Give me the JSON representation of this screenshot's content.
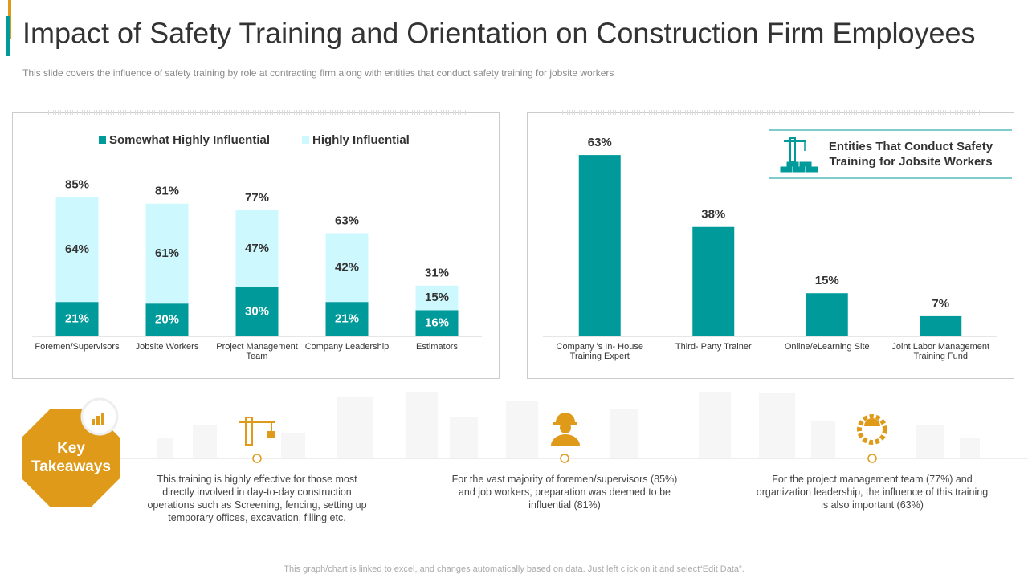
{
  "header": {
    "title": "Impact of Safety Training and Orientation on Construction Firm Employees",
    "subtitle": "This slide covers the influence of safety training by role at contracting firm along with entities that conduct safety training for jobsite workers"
  },
  "chart_data": [
    {
      "type": "stacked_bar",
      "categories": [
        "Foremen/Supervisors",
        "Jobsite Workers",
        "Project Management Team",
        "Company Leadership",
        "Estimators"
      ],
      "series": [
        {
          "name": "Somewhat Highly Influential",
          "color": "#009a9a",
          "values": [
            21,
            20,
            30,
            21,
            16
          ],
          "value_labels": [
            "21%",
            "20%",
            "30%",
            "21%",
            "16%"
          ]
        },
        {
          "name": "Highly Influential",
          "color": "#cdf8fd",
          "values": [
            64,
            61,
            47,
            42,
            15
          ],
          "value_labels": [
            "64%",
            "61%",
            "47%",
            "42%",
            "15%"
          ]
        }
      ],
      "totals": [
        85,
        81,
        77,
        63,
        31
      ],
      "total_labels": [
        "85%",
        "81%",
        "77%",
        "63%",
        "31%"
      ],
      "ylim": [
        0,
        100
      ],
      "legend": "top"
    },
    {
      "type": "bar",
      "title": "Entities That Conduct Safety Training for Jobsite Workers",
      "categories": [
        "Company 's In- House Training Expert",
        "Third- Party Trainer",
        "Online/eLearning Site",
        "Joint Labor Management Training Fund"
      ],
      "values": [
        63,
        38,
        15,
        7
      ],
      "value_labels": [
        "63%",
        "38%",
        "15%",
        "7%"
      ],
      "color": "#009a9a",
      "ylim": [
        0,
        70
      ]
    }
  ],
  "takeaways": {
    "heading": "Key Takeaways",
    "items": [
      "This training is highly effective for those most directly involved in day-to-day construction operations such as Screening, fencing, setting up temporary offices, excavation, filling etc.",
      "For the vast majority of foremen/supervisors (85%) and job workers, preparation was deemed to be influential (81%)",
      "For the project management team (77%) and organization leadership, the influence of this training is also important (63%)"
    ]
  },
  "footer": "This graph/chart is linked to excel, and changes automatically based on data. Just left click on it and select“Edit Data”."
}
